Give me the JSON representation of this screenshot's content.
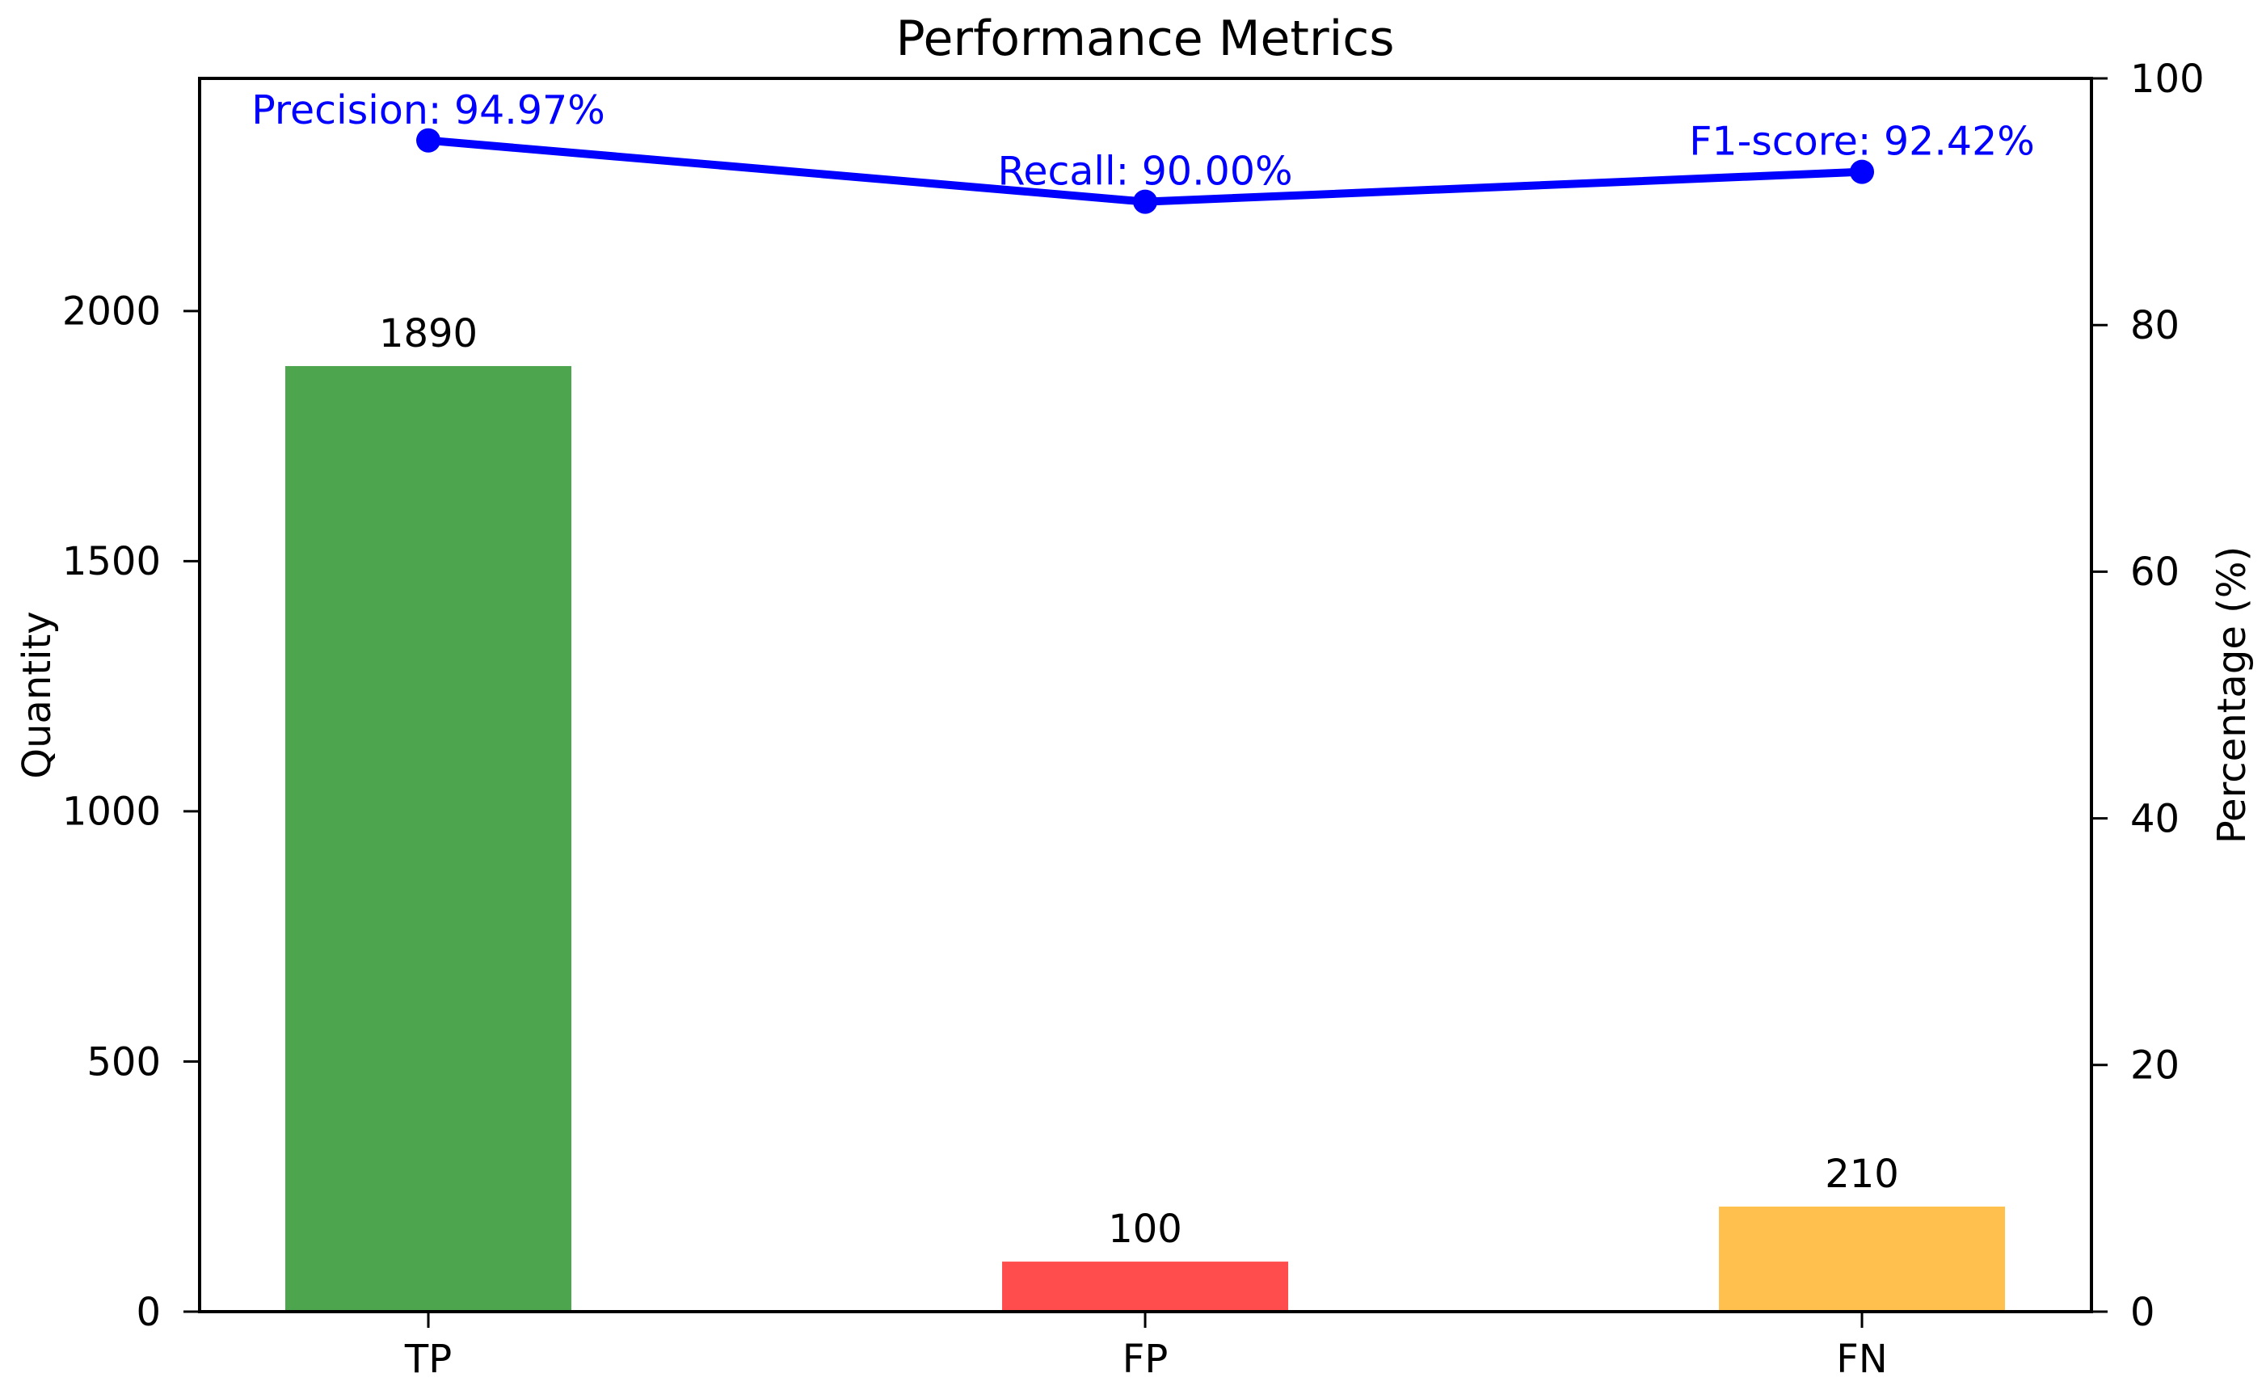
{
  "chart_data": {
    "type": "bar",
    "title": "Performance Metrics",
    "categories": [
      "TP",
      "FP",
      "FN"
    ],
    "series": [
      {
        "name": "Quantity",
        "type": "bar",
        "axis": "left",
        "values": [
          1890,
          100,
          210
        ],
        "value_labels": [
          "1890",
          "100",
          "210"
        ],
        "colors": [
          "#4DA64D",
          "#FF4D4D",
          "#FFC04D"
        ]
      },
      {
        "name": "Percentage",
        "type": "line",
        "axis": "right",
        "color": "#0000FF",
        "values": [
          94.97,
          90.0,
          92.42
        ],
        "annotations": [
          "Precision: 94.97%",
          "Recall: 90.00%",
          "F1-score: 92.42%"
        ]
      }
    ],
    "xlabel": "",
    "ylabel": "Quantity",
    "y2label": "Percentage (%)",
    "ylim": [
      0,
      2465
    ],
    "y2lim": [
      0,
      100
    ],
    "yticks": [
      "0",
      "500",
      "1000",
      "1500",
      "2000"
    ],
    "ytick_values": [
      0,
      500,
      1000,
      1500,
      2000
    ],
    "y2ticks": [
      "0",
      "20",
      "40",
      "60",
      "80",
      "100"
    ],
    "y2tick_values": [
      0,
      20,
      40,
      60,
      80,
      100
    ],
    "grid": false,
    "legend": "none",
    "background_color": "#FFFFFF",
    "spine_color": "#000000",
    "text_color": "#000000",
    "annotation_color": "#0000FF"
  }
}
